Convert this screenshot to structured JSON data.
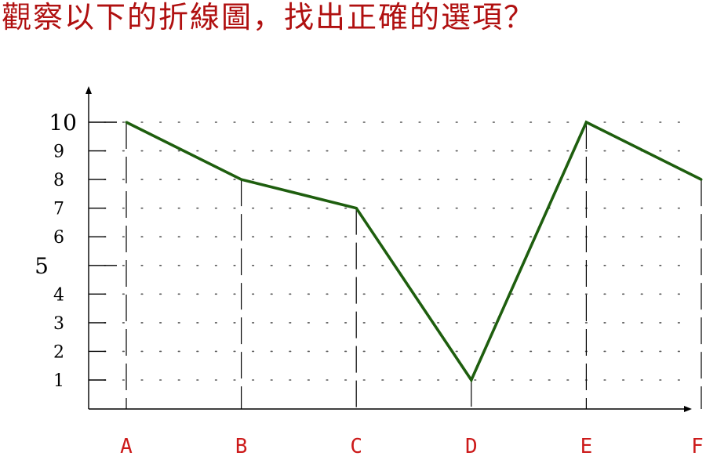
{
  "question": {
    "text": "觀察以下的折線圖，找出正確的選項？"
  },
  "colors": {
    "title": "#b01010",
    "line": "#1e5e0e",
    "axis": "#000000",
    "grid": "#555555",
    "category_label": "#cc1a1a"
  },
  "chart_data": {
    "type": "line",
    "title": "觀察以下的折線圖，找出正確的選項？",
    "xlabel": "",
    "ylabel": "",
    "categories": [
      "A",
      "B",
      "C",
      "D",
      "E",
      "F"
    ],
    "series": [
      {
        "name": "",
        "values": [
          10,
          8,
          7,
          1,
          10,
          8
        ]
      }
    ],
    "y_ticks": [
      1,
      2,
      3,
      4,
      5,
      6,
      7,
      8,
      9,
      10
    ],
    "ylim": [
      0,
      10
    ],
    "grid": true,
    "legend": "none"
  }
}
